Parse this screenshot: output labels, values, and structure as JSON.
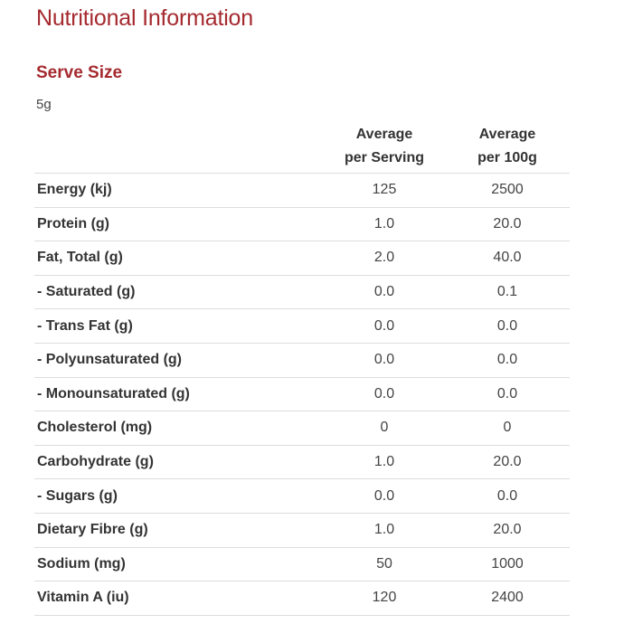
{
  "title": "Nutritional Information",
  "serve": {
    "heading": "Serve Size",
    "value": "5g"
  },
  "table": {
    "headers": {
      "per_serving": [
        "Average",
        "per Serving"
      ],
      "per_100g": [
        "Average",
        "per 100g"
      ]
    },
    "rows": [
      {
        "name": "Energy (kj)",
        "per_serving": "125",
        "per_100g": "2500"
      },
      {
        "name": "Protein (g)",
        "per_serving": "1.0",
        "per_100g": "20.0"
      },
      {
        "name": "Fat, Total (g)",
        "per_serving": "2.0",
        "per_100g": "40.0"
      },
      {
        "name": "- Saturated (g)",
        "per_serving": "0.0",
        "per_100g": "0.1"
      },
      {
        "name": "- Trans Fat (g)",
        "per_serving": "0.0",
        "per_100g": "0.0"
      },
      {
        "name": "- Polyunsaturated (g)",
        "per_serving": "0.0",
        "per_100g": "0.0"
      },
      {
        "name": "- Monounsaturated (g)",
        "per_serving": "0.0",
        "per_100g": "0.0"
      },
      {
        "name": "Cholesterol (mg)",
        "per_serving": "0",
        "per_100g": "0"
      },
      {
        "name": "Carbohydrate (g)",
        "per_serving": "1.0",
        "per_100g": "20.0"
      },
      {
        "name": "- Sugars (g)",
        "per_serving": "0.0",
        "per_100g": "0.0"
      },
      {
        "name": "Dietary Fibre (g)",
        "per_serving": "1.0",
        "per_100g": "20.0"
      },
      {
        "name": "Sodium (mg)",
        "per_serving": "50",
        "per_100g": "1000"
      },
      {
        "name": "Vitamin A (iu)",
        "per_serving": "120",
        "per_100g": "2400"
      }
    ]
  },
  "colors": {
    "heading": "#a52a2f",
    "text": "#333333",
    "divider": "#dddddd"
  }
}
